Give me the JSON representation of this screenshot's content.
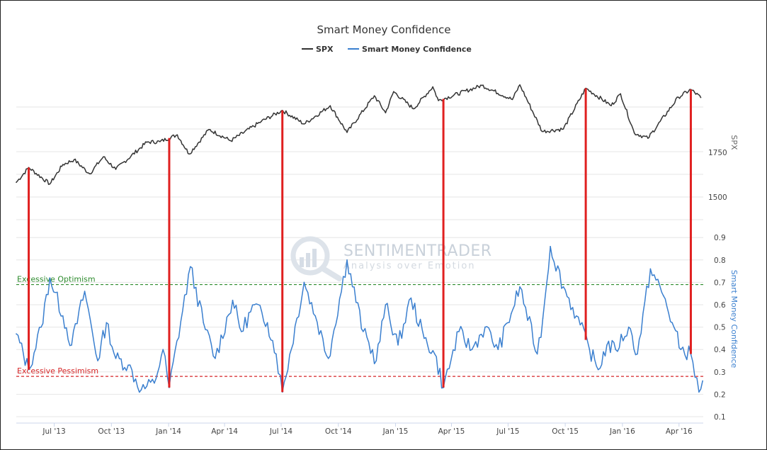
{
  "chart_data": {
    "type": "line",
    "title": "Smart Money Confidence",
    "legend": [
      "SPX",
      "Smart Money Confidence"
    ],
    "legend_placement": "top-center",
    "grid": "horizontal",
    "x_ticks": [
      "Jul '13",
      "Oct '13",
      "Jan '14",
      "Apr '14",
      "Jul '14",
      "Oct '14",
      "Jan '15",
      "Apr '15",
      "Jul '15",
      "Oct '15",
      "Jan '16",
      "Apr '16"
    ],
    "spx_axis": {
      "label": "SPX",
      "ticks": [
        1500,
        1750
      ]
    },
    "smc_axis": {
      "label": "Smart Money Confidence",
      "ticks": [
        0.1,
        0.2,
        0.3,
        0.4,
        0.5,
        0.6,
        0.7,
        0.8,
        0.9
      ],
      "ylim": [
        0.1,
        0.9
      ]
    },
    "thresholds": [
      {
        "label": "Excessive Optimism",
        "value": 0.69,
        "color": "#2e8b2e"
      },
      {
        "label": "Excessive Pessimism",
        "value": 0.28,
        "color": "#d62728"
      }
    ],
    "series": [
      {
        "name": "SPX",
        "color": "#333333",
        "points": [
          [
            "2013-05-01",
            1582
          ],
          [
            "2013-05-21",
            1665
          ],
          [
            "2013-06-24",
            1573
          ],
          [
            "2013-07-15",
            1682
          ],
          [
            "2013-08-02",
            1709
          ],
          [
            "2013-08-27",
            1630
          ],
          [
            "2013-09-18",
            1725
          ],
          [
            "2013-10-08",
            1655
          ],
          [
            "2013-11-27",
            1807
          ],
          [
            "2013-12-18",
            1810
          ],
          [
            "2014-01-15",
            1848
          ],
          [
            "2014-02-03",
            1741
          ],
          [
            "2014-03-07",
            1878
          ],
          [
            "2014-04-11",
            1815
          ],
          [
            "2014-05-30",
            1923
          ],
          [
            "2014-07-03",
            1985
          ],
          [
            "2014-08-07",
            1909
          ],
          [
            "2014-09-18",
            2011
          ],
          [
            "2014-10-15",
            1862
          ],
          [
            "2014-11-28",
            2067
          ],
          [
            "2014-12-16",
            1972
          ],
          [
            "2014-12-29",
            2090
          ],
          [
            "2015-01-30",
            1994
          ],
          [
            "2015-03-02",
            2117
          ],
          [
            "2015-03-11",
            2040
          ],
          [
            "2015-05-20",
            2125
          ],
          [
            "2015-07-08",
            2046
          ],
          [
            "2015-07-20",
            2128
          ],
          [
            "2015-08-25",
            1867
          ],
          [
            "2015-09-28",
            1881
          ],
          [
            "2015-11-03",
            2109
          ],
          [
            "2015-12-14",
            2012
          ],
          [
            "2015-12-29",
            2078
          ],
          [
            "2016-01-20",
            1859
          ],
          [
            "2016-02-11",
            1829
          ],
          [
            "2016-03-31",
            2059
          ],
          [
            "2016-04-20",
            2102
          ],
          [
            "2016-05-06",
            2057
          ]
        ]
      },
      {
        "name": "Smart Money Confidence",
        "color": "#3a7fcf",
        "points": [
          [
            "2013-05-01",
            0.47
          ],
          [
            "2013-05-21",
            0.31
          ],
          [
            "2013-06-10",
            0.5
          ],
          [
            "2013-06-24",
            0.72
          ],
          [
            "2013-07-15",
            0.55
          ],
          [
            "2013-07-29",
            0.42
          ],
          [
            "2013-08-19",
            0.66
          ],
          [
            "2013-09-09",
            0.35
          ],
          [
            "2013-09-23",
            0.52
          ],
          [
            "2013-10-08",
            0.36
          ],
          [
            "2013-10-28",
            0.33
          ],
          [
            "2013-11-18",
            0.22
          ],
          [
            "2013-12-09",
            0.25
          ],
          [
            "2013-12-23",
            0.4
          ],
          [
            "2014-01-02",
            0.23
          ],
          [
            "2014-02-05",
            0.77
          ],
          [
            "2014-02-26",
            0.52
          ],
          [
            "2014-03-17",
            0.36
          ],
          [
            "2014-04-14",
            0.62
          ],
          [
            "2014-04-28",
            0.48
          ],
          [
            "2014-05-19",
            0.6
          ],
          [
            "2014-06-09",
            0.52
          ],
          [
            "2014-06-23",
            0.38
          ],
          [
            "2014-07-03",
            0.21
          ],
          [
            "2014-08-07",
            0.7
          ],
          [
            "2014-08-25",
            0.55
          ],
          [
            "2014-09-15",
            0.36
          ],
          [
            "2014-10-15",
            0.8
          ],
          [
            "2014-11-10",
            0.48
          ],
          [
            "2014-12-01",
            0.35
          ],
          [
            "2014-12-16",
            0.6
          ],
          [
            "2015-01-05",
            0.42
          ],
          [
            "2015-01-26",
            0.63
          ],
          [
            "2015-02-16",
            0.45
          ],
          [
            "2015-03-05",
            0.38
          ],
          [
            "2015-03-19",
            0.23
          ],
          [
            "2015-04-13",
            0.48
          ],
          [
            "2015-05-04",
            0.4
          ],
          [
            "2015-05-25",
            0.5
          ],
          [
            "2015-06-15",
            0.4
          ],
          [
            "2015-07-06",
            0.56
          ],
          [
            "2015-07-20",
            0.68
          ],
          [
            "2015-08-17",
            0.38
          ],
          [
            "2015-08-26",
            0.54
          ],
          [
            "2015-09-07",
            0.86
          ],
          [
            "2015-09-28",
            0.68
          ],
          [
            "2015-10-19",
            0.55
          ],
          [
            "2015-11-09",
            0.4
          ],
          [
            "2015-11-23",
            0.31
          ],
          [
            "2015-12-07",
            0.42
          ],
          [
            "2015-12-21",
            0.4
          ],
          [
            "2016-01-11",
            0.5
          ],
          [
            "2016-01-25",
            0.38
          ],
          [
            "2016-02-15",
            0.76
          ],
          [
            "2016-03-07",
            0.64
          ],
          [
            "2016-03-21",
            0.52
          ],
          [
            "2016-04-04",
            0.4
          ],
          [
            "2016-04-20",
            0.38
          ],
          [
            "2016-05-03",
            0.21
          ],
          [
            "2016-05-09",
            0.26
          ]
        ]
      }
    ],
    "signal_dates": [
      "2013-05-21",
      "2014-01-02",
      "2014-07-03",
      "2015-03-19",
      "2015-11-03",
      "2016-04-20"
    ]
  },
  "watermark": {
    "brand": "SENTIMENTRADER",
    "tagline": "Analysis over Emotion"
  }
}
